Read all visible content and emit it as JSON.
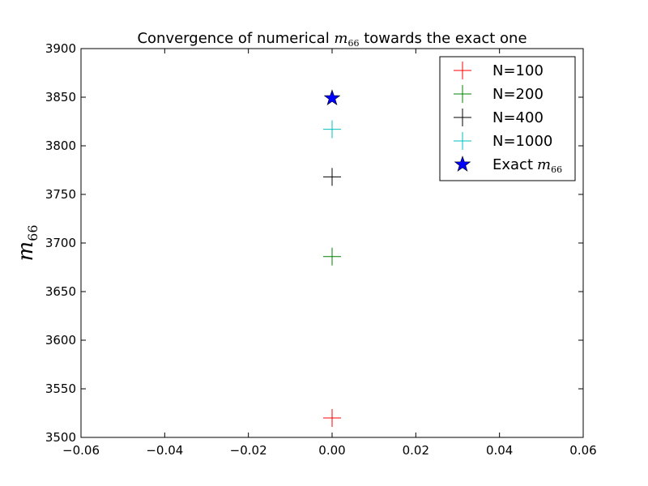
{
  "chart_data": {
    "type": "scatter",
    "title": {
      "prefix": "Convergence of numerical ",
      "math": "m",
      "math_sub": "66",
      "suffix": " towards the exact one"
    },
    "xlabel": "",
    "ylabel": {
      "math": "m",
      "math_sub": "66"
    },
    "xlim": [
      -0.06,
      0.06
    ],
    "ylim": [
      3500,
      3900
    ],
    "xticks": [
      -0.06,
      -0.04,
      -0.02,
      0.0,
      0.02,
      0.04,
      0.06
    ],
    "xtick_labels": [
      "−0.06",
      "−0.04",
      "−0.02",
      "0.00",
      "0.02",
      "0.04",
      "0.06"
    ],
    "yticks": [
      3500,
      3550,
      3600,
      3650,
      3700,
      3750,
      3800,
      3850,
      3900
    ],
    "ytick_labels": [
      "3500",
      "3550",
      "3600",
      "3650",
      "3700",
      "3750",
      "3800",
      "3850",
      "3900"
    ],
    "grid": false,
    "legend_position": "top-right",
    "series": [
      {
        "name": "N=100",
        "marker": "plus",
        "color": "#ff0000",
        "x": [
          0.0
        ],
        "y": [
          3520
        ]
      },
      {
        "name": "N=200",
        "marker": "plus",
        "color": "#008000",
        "x": [
          0.0
        ],
        "y": [
          3686
        ]
      },
      {
        "name": "N=400",
        "marker": "plus",
        "color": "#000000",
        "x": [
          0.0
        ],
        "y": [
          3768
        ]
      },
      {
        "name": "N=1000",
        "marker": "plus",
        "color": "#00bfbf",
        "x": [
          0.0
        ],
        "y": [
          3817
        ]
      },
      {
        "name": "Exact",
        "name_math": "m",
        "name_math_sub": "66",
        "marker": "star",
        "color": "#0000ff",
        "x": [
          0.0
        ],
        "y": [
          3849
        ]
      }
    ]
  }
}
